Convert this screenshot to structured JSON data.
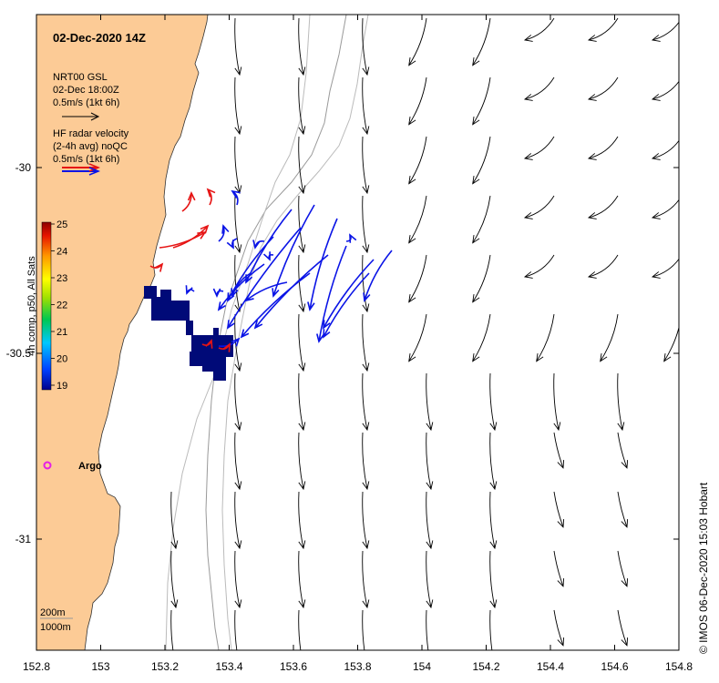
{
  "map": {
    "title": "02-Dec-2020 14Z",
    "x_ticks": [
      "152.8",
      "153",
      "153.2",
      "153.4",
      "153.6",
      "153.8",
      "154",
      "154.2",
      "154.4",
      "154.6",
      "154.8"
    ],
    "y_ticks": [
      "-30",
      "-30.5",
      "-31"
    ],
    "colors": {
      "land": "#fccb96",
      "radar_blue": "#0a14e6",
      "radar_red": "#e61414",
      "sst_cold": "#000a78",
      "argo": "#e61ee6"
    }
  },
  "legend": {
    "model_name": "NRT00 GSL",
    "model_time": "02-Dec 18:00Z",
    "model_scale": "0.5m/s (1kt 6h)",
    "radar_title": "HF radar velocity",
    "radar_avg": "(2-4h avg) noQC",
    "radar_scale": "0.5m/s (1kt 6h)"
  },
  "colorbar": {
    "label": "4h comp, p50, All Sats",
    "ticks": [
      "25",
      "24",
      "23",
      "22",
      "21",
      "20",
      "19"
    ],
    "range": [
      19,
      25
    ]
  },
  "argo": {
    "label": "Argo"
  },
  "isobaths": {
    "shallow": "200m",
    "deep": "1000m"
  },
  "credit": "© IMOS 06-Dec-2020 15:03 Hobart"
}
